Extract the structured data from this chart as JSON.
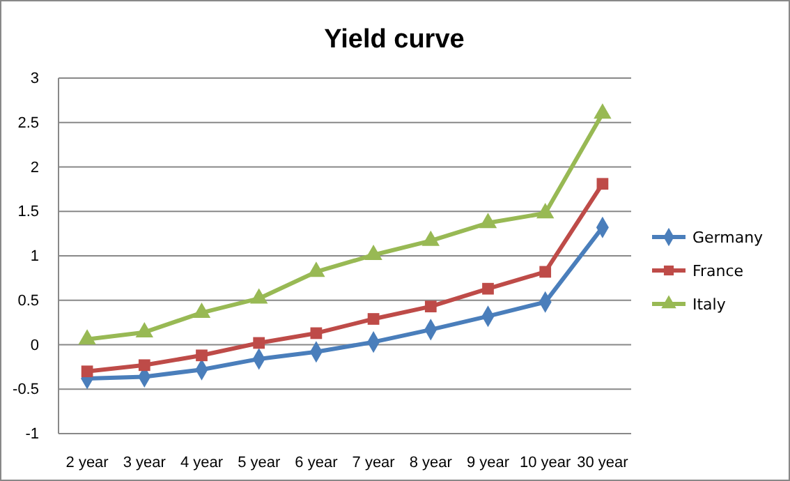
{
  "chart_data": {
    "type": "line",
    "title": "Yield curve",
    "categories": [
      "2 year",
      "3 year",
      "4 year",
      "5 year",
      "6 year",
      "7 year",
      "8 year",
      "9 year",
      "10 year",
      "30 year"
    ],
    "series": [
      {
        "name": "Germany",
        "color": "#4a7ebb",
        "marker": "diamond",
        "values": [
          -0.38,
          -0.36,
          -0.28,
          -0.16,
          -0.08,
          0.03,
          0.17,
          0.32,
          0.48,
          1.32
        ]
      },
      {
        "name": "France",
        "color": "#be4b48",
        "marker": "square",
        "values": [
          -0.3,
          -0.23,
          -0.12,
          0.02,
          0.13,
          0.29,
          0.43,
          0.63,
          0.82,
          1.81
        ]
      },
      {
        "name": "Italy",
        "color": "#98b954",
        "marker": "triangle",
        "values": [
          0.06,
          0.14,
          0.36,
          0.52,
          0.82,
          1.01,
          1.17,
          1.37,
          1.48,
          2.6
        ]
      }
    ],
    "ylim": [
      -1,
      3
    ],
    "yticks": [
      -1,
      -0.5,
      0,
      0.5,
      1,
      1.5,
      2,
      2.5,
      3
    ],
    "grid": "y",
    "legend": "right",
    "line_style": "solid"
  }
}
